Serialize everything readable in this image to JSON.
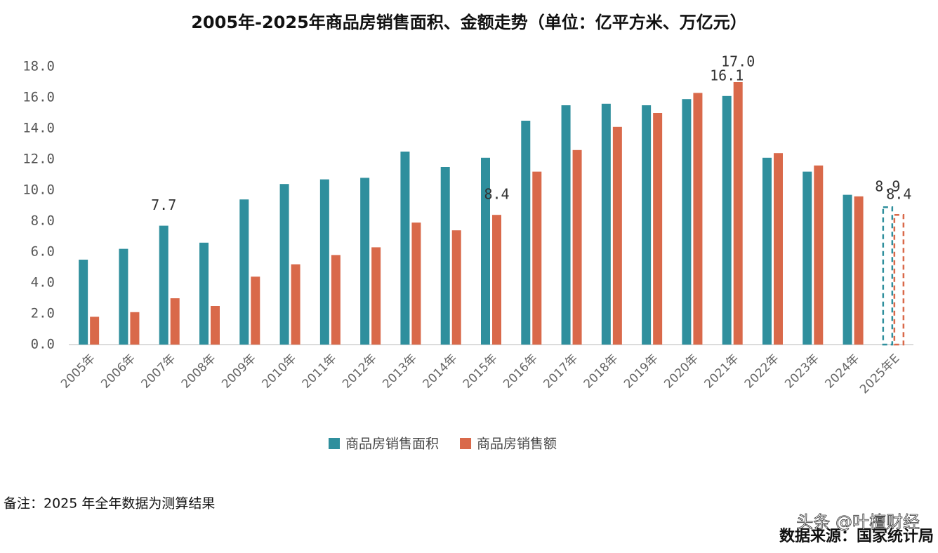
{
  "chart_data": {
    "type": "bar",
    "title": "2005年-2025年商品房销售面积、金额走势（单位：亿平方米、万亿元）",
    "categories": [
      "2005年",
      "2006年",
      "2007年",
      "2008年",
      "2009年",
      "2010年",
      "2011年",
      "2012年",
      "2013年",
      "2014年",
      "2015年",
      "2016年",
      "2017年",
      "2018年",
      "2019年",
      "2020年",
      "2021年",
      "2022年",
      "2023年",
      "2024年",
      "2025年E"
    ],
    "series": [
      {
        "name": "商品房销售面积",
        "color": "#2f8f9d",
        "values": [
          5.5,
          6.2,
          7.7,
          6.6,
          9.4,
          10.4,
          10.7,
          10.8,
          12.5,
          11.5,
          12.1,
          14.5,
          15.5,
          15.6,
          15.5,
          15.9,
          16.1,
          12.1,
          11.2,
          9.7,
          8.9
        ],
        "value_labels": [
          null,
          null,
          "7.7",
          null,
          null,
          null,
          null,
          null,
          null,
          null,
          null,
          null,
          null,
          null,
          null,
          null,
          "16.1",
          null,
          null,
          null,
          "8.9"
        ]
      },
      {
        "name": "商品房销售额",
        "color": "#d9694a",
        "values": [
          1.8,
          2.1,
          3.0,
          2.5,
          4.4,
          5.2,
          5.8,
          6.3,
          7.9,
          7.4,
          8.4,
          11.2,
          12.6,
          14.1,
          15.0,
          16.3,
          17.0,
          12.4,
          11.6,
          9.6,
          8.4
        ],
        "value_labels": [
          null,
          null,
          null,
          null,
          null,
          null,
          null,
          null,
          null,
          null,
          "8.4",
          null,
          null,
          null,
          null,
          null,
          "17.0",
          null,
          null,
          null,
          "8.4"
        ]
      }
    ],
    "ylim": [
      0,
      18
    ],
    "yticks": [
      {
        "value": 0,
        "label": "0.0"
      },
      {
        "value": 2,
        "label": "2.0"
      },
      {
        "value": 4,
        "label": "4.0"
      },
      {
        "value": 6,
        "label": "6.0"
      },
      {
        "value": 8,
        "label": "8.0"
      },
      {
        "value": 10,
        "label": "10.0"
      },
      {
        "value": 12,
        "label": "12.0"
      },
      {
        "value": 14,
        "label": "14.0"
      },
      {
        "value": 16,
        "label": "16.0"
      },
      {
        "value": 18,
        "label": "18.0"
      }
    ],
    "grid": false,
    "last_dashed": true,
    "legend": "bottom",
    "note": "备注：2025 年全年数据为测算结果",
    "source": "数据来源：国家统计局",
    "watermark": "头条 @叶檀财经"
  }
}
